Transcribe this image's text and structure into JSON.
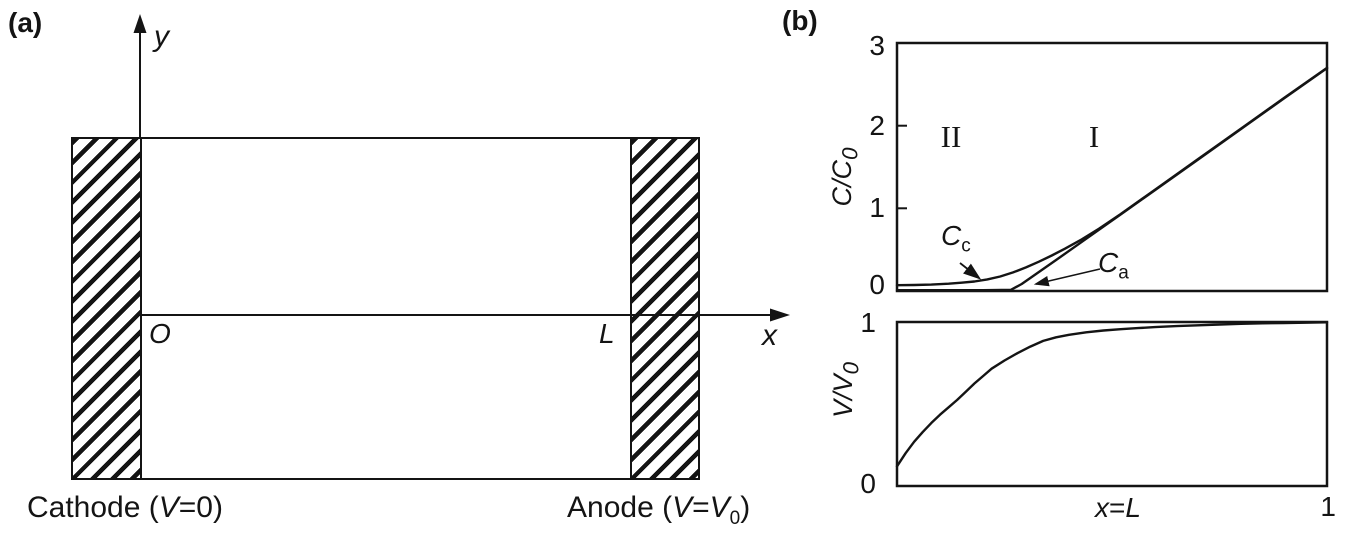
{
  "colors": {
    "ink": "#141414",
    "paper": "#ffffff"
  },
  "panel_a": {
    "label": "(a)",
    "y_axis_label": "y",
    "x_axis_label": "x",
    "origin_label": "O",
    "length_label": "L",
    "cathode": {
      "pre": "Cathode (",
      "v": "V",
      "post": "=0)"
    },
    "anode": {
      "pre": "Anode (",
      "v1": "V",
      "eq": "=",
      "v2": "V",
      "sub": "0",
      "post": ")"
    }
  },
  "panel_b": {
    "label": "(b)",
    "top_plot": {
      "ylabel_main": "C/C",
      "ylabel_sub": "0",
      "yticks": [
        "3",
        "2",
        "1",
        "0"
      ],
      "region_II": "II",
      "region_I": "I",
      "ann_cc_main": "C",
      "ann_cc_sub": "c",
      "ann_ca_main": "C",
      "ann_ca_sub": "a"
    },
    "bottom_plot": {
      "ylabel_main": "V/V",
      "ylabel_sub": "0",
      "ytick_top": "1",
      "ytick_bottom": "0",
      "xlabel_x": "x",
      "xlabel_eq": "=",
      "xlabel_L": "L",
      "xtick_right": "1"
    }
  },
  "chart_data": [
    {
      "type": "line",
      "panel": "b-top",
      "title": "",
      "xlabel": "",
      "ylabel": "C/C0",
      "xlim": [
        0,
        1
      ],
      "ylim": [
        0,
        3
      ],
      "yticks": [
        0,
        1,
        2,
        3
      ],
      "grid": false,
      "legend": "none",
      "region_labels": [
        {
          "text": "II",
          "x": 0.13,
          "y": 1.9
        },
        {
          "text": "I",
          "x": 0.46,
          "y": 1.9
        }
      ],
      "annotations": [
        {
          "text": "Cc",
          "arrow_points_to": [
            0.2,
            0.1
          ]
        },
        {
          "text": "Ca",
          "arrow_points_to": [
            0.32,
            0.08
          ]
        }
      ],
      "series": [
        {
          "name": "Cc",
          "points": [
            [
              0,
              0.07
            ],
            [
              0.04,
              0.072
            ],
            [
              0.08,
              0.078
            ],
            [
              0.12,
              0.088
            ],
            [
              0.15,
              0.1
            ],
            [
              0.18,
              0.115
            ],
            [
              0.21,
              0.14
            ],
            [
              0.24,
              0.175
            ],
            [
              0.27,
              0.225
            ],
            [
              0.3,
              0.285
            ],
            [
              0.33,
              0.355
            ],
            [
              0.36,
              0.43
            ],
            [
              0.39,
              0.51
            ],
            [
              0.43,
              0.625
            ],
            [
              0.47,
              0.755
            ],
            [
              0.52,
              0.93
            ],
            [
              0.6,
              1.225
            ],
            [
              0.7,
              1.595
            ],
            [
              0.8,
              1.965
            ],
            [
              0.9,
              2.335
            ],
            [
              1.0,
              2.7
            ]
          ]
        },
        {
          "name": "Ca",
          "points": [
            [
              0,
              0.01
            ],
            [
              0.1,
              0.01
            ],
            [
              0.2,
              0.01
            ],
            [
              0.265,
              0.015
            ],
            [
              0.29,
              0.085
            ],
            [
              0.33,
              0.23
            ],
            [
              0.37,
              0.375
            ],
            [
              0.43,
              0.595
            ],
            [
              0.52,
              0.925
            ],
            [
              0.6,
              1.22
            ],
            [
              0.7,
              1.59
            ],
            [
              0.8,
              1.96
            ],
            [
              0.9,
              2.33
            ],
            [
              1.0,
              2.695
            ]
          ]
        }
      ]
    },
    {
      "type": "line",
      "panel": "b-bottom",
      "title": "",
      "xlabel": "x=L",
      "ylabel": "V/V0",
      "xlim": [
        0,
        1
      ],
      "ylim": [
        0,
        1
      ],
      "yticks": [
        0,
        1
      ],
      "xticks": [
        1
      ],
      "grid": false,
      "legend": "none",
      "series": [
        {
          "name": "V/V0",
          "points": [
            [
              0,
              0.12
            ],
            [
              0.02,
              0.2
            ],
            [
              0.04,
              0.27
            ],
            [
              0.06,
              0.33
            ],
            [
              0.08,
              0.385
            ],
            [
              0.1,
              0.435
            ],
            [
              0.12,
              0.48
            ],
            [
              0.14,
              0.525
            ],
            [
              0.16,
              0.575
            ],
            [
              0.18,
              0.625
            ],
            [
              0.2,
              0.67
            ],
            [
              0.22,
              0.715
            ],
            [
              0.25,
              0.765
            ],
            [
              0.28,
              0.81
            ],
            [
              0.31,
              0.85
            ],
            [
              0.34,
              0.885
            ],
            [
              0.37,
              0.907
            ],
            [
              0.4,
              0.922
            ],
            [
              0.44,
              0.937
            ],
            [
              0.48,
              0.948
            ],
            [
              0.52,
              0.956
            ],
            [
              0.56,
              0.963
            ],
            [
              0.6,
              0.969
            ],
            [
              0.65,
              0.975
            ],
            [
              0.7,
              0.98
            ],
            [
              0.75,
              0.985
            ],
            [
              0.8,
              0.989
            ],
            [
              0.85,
              0.992
            ],
            [
              0.9,
              0.994
            ],
            [
              0.95,
              0.996
            ],
            [
              1.0,
              0.998
            ]
          ]
        }
      ]
    }
  ]
}
